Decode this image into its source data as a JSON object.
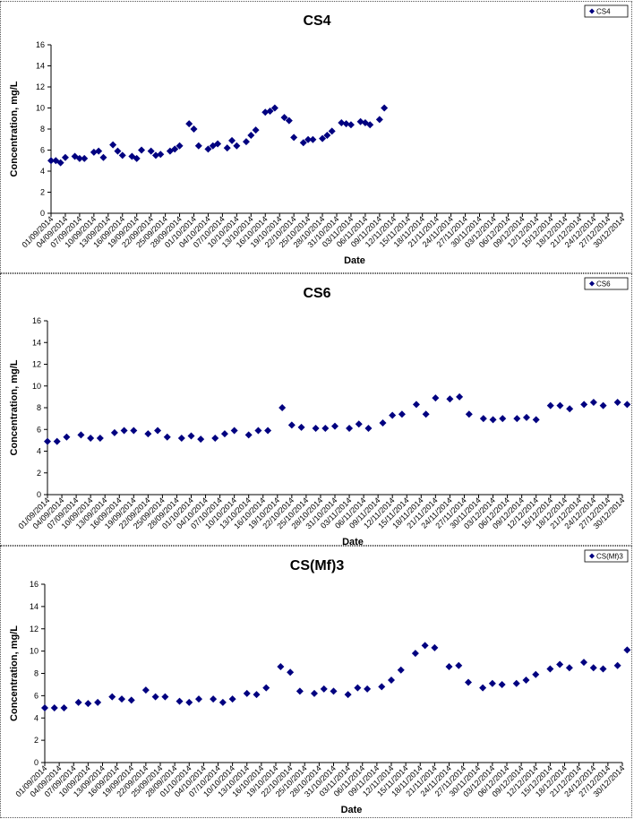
{
  "chart_data": [
    {
      "type": "scatter",
      "title": "CS4",
      "xlabel": "Date",
      "ylabel": "Concentration, mg/L",
      "ylim": [
        0,
        16
      ],
      "yticks": [
        0,
        2,
        4,
        6,
        8,
        10,
        12,
        14,
        16
      ],
      "grid": false,
      "legend_position": "top-right",
      "marker_color": "#000080",
      "x_range": [
        "01/09/2014",
        "30/12/2014"
      ],
      "xtick_labels": [
        "01/09/2014",
        "04/09/2014",
        "07/09/2014",
        "10/09/2014",
        "13/09/2014",
        "16/09/2014",
        "19/09/2014",
        "22/09/2014",
        "25/09/2014",
        "28/09/2014",
        "01/10/2014",
        "04/10/2014",
        "07/10/2014",
        "10/10/2014",
        "13/10/2014",
        "16/10/2014",
        "19/10/2014",
        "22/10/2014",
        "25/10/2014",
        "28/10/2014",
        "31/10/2014",
        "03/11/2014",
        "06/11/2014",
        "09/11/2014",
        "12/11/2014",
        "15/11/2014",
        "18/11/2014",
        "21/11/2014",
        "24/11/2014",
        "27/11/2014",
        "30/11/2014",
        "03/12/2014",
        "06/12/2014",
        "09/12/2014",
        "12/12/2014",
        "15/12/2014",
        "18/12/2014",
        "21/12/2014",
        "24/12/2014",
        "27/12/2014",
        "30/12/2014"
      ],
      "series": [
        {
          "name": "CS4",
          "points": [
            [
              "01/09/2014",
              5.0
            ],
            [
              "02/09/2014",
              5.0
            ],
            [
              "03/09/2014",
              4.8
            ],
            [
              "04/09/2014",
              5.3
            ],
            [
              "06/09/2014",
              5.4
            ],
            [
              "07/09/2014",
              5.2
            ],
            [
              "08/09/2014",
              5.2
            ],
            [
              "10/09/2014",
              5.8
            ],
            [
              "11/09/2014",
              5.9
            ],
            [
              "12/09/2014",
              5.3
            ],
            [
              "14/09/2014",
              6.5
            ],
            [
              "15/09/2014",
              5.9
            ],
            [
              "16/09/2014",
              5.5
            ],
            [
              "18/09/2014",
              5.4
            ],
            [
              "19/09/2014",
              5.2
            ],
            [
              "20/09/2014",
              6.0
            ],
            [
              "22/09/2014",
              5.9
            ],
            [
              "23/09/2014",
              5.5
            ],
            [
              "24/09/2014",
              5.6
            ],
            [
              "26/09/2014",
              5.9
            ],
            [
              "27/09/2014",
              6.1
            ],
            [
              "28/09/2014",
              6.4
            ],
            [
              "30/09/2014",
              8.5
            ],
            [
              "01/10/2014",
              8.0
            ],
            [
              "02/10/2014",
              6.4
            ],
            [
              "04/10/2014",
              6.1
            ],
            [
              "05/10/2014",
              6.4
            ],
            [
              "06/10/2014",
              6.6
            ],
            [
              "08/10/2014",
              6.2
            ],
            [
              "09/10/2014",
              6.9
            ],
            [
              "10/10/2014",
              6.4
            ],
            [
              "12/10/2014",
              6.8
            ],
            [
              "13/10/2014",
              7.4
            ],
            [
              "14/10/2014",
              7.9
            ],
            [
              "16/10/2014",
              9.6
            ],
            [
              "17/10/2014",
              9.7
            ],
            [
              "18/10/2014",
              10.0
            ],
            [
              "20/10/2014",
              9.1
            ],
            [
              "21/10/2014",
              8.8
            ],
            [
              "22/10/2014",
              7.2
            ],
            [
              "24/10/2014",
              6.7
            ],
            [
              "25/10/2014",
              7.0
            ],
            [
              "26/10/2014",
              7.0
            ],
            [
              "28/10/2014",
              7.1
            ],
            [
              "29/10/2014",
              7.4
            ],
            [
              "30/10/2014",
              7.8
            ],
            [
              "01/11/2014",
              8.6
            ],
            [
              "02/11/2014",
              8.5
            ],
            [
              "03/11/2014",
              8.4
            ],
            [
              "05/11/2014",
              8.7
            ],
            [
              "06/11/2014",
              8.6
            ],
            [
              "07/11/2014",
              8.4
            ],
            [
              "09/11/2014",
              8.9
            ],
            [
              "10/11/2014",
              10.0
            ]
          ]
        }
      ]
    },
    {
      "type": "scatter",
      "title": "CS6",
      "xlabel": "Date",
      "ylabel": "Concentration, mg/L",
      "ylim": [
        0,
        16
      ],
      "yticks": [
        0,
        2,
        4,
        6,
        8,
        10,
        12,
        14,
        16
      ],
      "grid": false,
      "legend_position": "top-right",
      "marker_color": "#000080",
      "x_range": [
        "01/09/2014",
        "30/12/2014"
      ],
      "xtick_labels": [
        "01/09/2014",
        "04/09/2014",
        "07/09/2014",
        "10/09/2014",
        "13/09/2014",
        "16/09/2014",
        "19/09/2014",
        "22/09/2014",
        "25/09/2014",
        "28/09/2014",
        "01/10/2014",
        "04/10/2014",
        "07/10/2014",
        "10/10/2014",
        "13/10/2014",
        "16/10/2014",
        "19/10/2014",
        "22/10/2014",
        "25/10/2014",
        "28/10/2014",
        "31/10/2014",
        "03/11/2014",
        "06/11/2014",
        "09/11/2014",
        "12/11/2014",
        "15/11/2014",
        "18/11/2014",
        "21/11/2014",
        "24/11/2014",
        "27/11/2014",
        "30/11/2014",
        "03/12/2014",
        "06/12/2014",
        "09/12/2014",
        "12/12/2014",
        "15/12/2014",
        "18/12/2014",
        "21/12/2014",
        "24/12/2014",
        "27/12/2014",
        "30/12/2014"
      ],
      "series": [
        {
          "name": "CS6",
          "points": [
            [
              "01/09/2014",
              4.9
            ],
            [
              "03/09/2014",
              4.9
            ],
            [
              "05/09/2014",
              5.3
            ],
            [
              "08/09/2014",
              5.5
            ],
            [
              "10/09/2014",
              5.2
            ],
            [
              "12/09/2014",
              5.2
            ],
            [
              "15/09/2014",
              5.7
            ],
            [
              "17/09/2014",
              5.9
            ],
            [
              "19/09/2014",
              5.9
            ],
            [
              "22/09/2014",
              5.6
            ],
            [
              "24/09/2014",
              5.9
            ],
            [
              "26/09/2014",
              5.3
            ],
            [
              "29/09/2014",
              5.2
            ],
            [
              "01/10/2014",
              5.4
            ],
            [
              "03/10/2014",
              5.1
            ],
            [
              "06/10/2014",
              5.2
            ],
            [
              "08/10/2014",
              5.6
            ],
            [
              "10/10/2014",
              5.9
            ],
            [
              "13/10/2014",
              5.5
            ],
            [
              "15/10/2014",
              5.9
            ],
            [
              "17/10/2014",
              5.9
            ],
            [
              "20/10/2014",
              8.0
            ],
            [
              "22/10/2014",
              6.4
            ],
            [
              "24/10/2014",
              6.2
            ],
            [
              "27/10/2014",
              6.1
            ],
            [
              "29/10/2014",
              6.1
            ],
            [
              "31/10/2014",
              6.3
            ],
            [
              "03/11/2014",
              6.1
            ],
            [
              "05/11/2014",
              6.5
            ],
            [
              "07/11/2014",
              6.1
            ],
            [
              "10/11/2014",
              6.6
            ],
            [
              "12/11/2014",
              7.3
            ],
            [
              "14/11/2014",
              7.4
            ],
            [
              "17/11/2014",
              8.3
            ],
            [
              "19/11/2014",
              7.4
            ],
            [
              "21/11/2014",
              8.9
            ],
            [
              "24/11/2014",
              8.8
            ],
            [
              "26/11/2014",
              9.0
            ],
            [
              "28/11/2014",
              7.4
            ],
            [
              "01/12/2014",
              7.0
            ],
            [
              "03/12/2014",
              6.9
            ],
            [
              "05/12/2014",
              7.0
            ],
            [
              "08/12/2014",
              7.0
            ],
            [
              "10/12/2014",
              7.1
            ],
            [
              "12/12/2014",
              6.9
            ],
            [
              "15/12/2014",
              8.2
            ],
            [
              "17/12/2014",
              8.2
            ],
            [
              "19/12/2014",
              7.9
            ],
            [
              "22/12/2014",
              8.3
            ],
            [
              "24/12/2014",
              8.5
            ],
            [
              "26/12/2014",
              8.2
            ],
            [
              "29/12/2014",
              8.5
            ],
            [
              "31/12/2014",
              8.3
            ]
          ]
        }
      ]
    },
    {
      "type": "scatter",
      "title": "CS(Mf)3",
      "xlabel": "Date",
      "ylabel": "Concentration, mg/L",
      "ylim": [
        0,
        16
      ],
      "yticks": [
        0,
        2,
        4,
        6,
        8,
        10,
        12,
        14,
        16
      ],
      "grid": false,
      "legend_position": "top-right",
      "marker_color": "#000080",
      "x_range": [
        "01/09/2014",
        "30/12/2014"
      ],
      "xtick_labels": [
        "01/09/2014",
        "04/09/2014",
        "07/09/2014",
        "10/09/2014",
        "13/09/2014",
        "16/09/2014",
        "19/09/2014",
        "22/09/2014",
        "25/09/2014",
        "28/09/2014",
        "01/10/2014",
        "04/10/2014",
        "07/10/2014",
        "10/10/2014",
        "13/10/2014",
        "16/10/2014",
        "19/10/2014",
        "22/10/2014",
        "25/10/2014",
        "28/10/2014",
        "31/10/2014",
        "03/11/2014",
        "06/11/2014",
        "09/11/2014",
        "12/11/2014",
        "15/11/2014",
        "18/11/2014",
        "21/11/2014",
        "24/11/2014",
        "27/11/2014",
        "30/11/2014",
        "03/12/2014",
        "06/12/2014",
        "09/12/2014",
        "12/12/2014",
        "15/12/2014",
        "18/12/2014",
        "21/12/2014",
        "24/12/2014",
        "27/12/2014",
        "30/12/2014"
      ],
      "series": [
        {
          "name": "CS(Mf)3",
          "points": [
            [
              "01/09/2014",
              4.9
            ],
            [
              "03/09/2014",
              4.9
            ],
            [
              "05/09/2014",
              4.9
            ],
            [
              "08/09/2014",
              5.4
            ],
            [
              "10/09/2014",
              5.3
            ],
            [
              "12/09/2014",
              5.4
            ],
            [
              "15/09/2014",
              5.9
            ],
            [
              "17/09/2014",
              5.7
            ],
            [
              "19/09/2014",
              5.6
            ],
            [
              "22/09/2014",
              6.5
            ],
            [
              "24/09/2014",
              5.9
            ],
            [
              "26/09/2014",
              5.9
            ],
            [
              "29/09/2014",
              5.5
            ],
            [
              "01/10/2014",
              5.4
            ],
            [
              "03/10/2014",
              5.7
            ],
            [
              "06/10/2014",
              5.7
            ],
            [
              "08/10/2014",
              5.4
            ],
            [
              "10/10/2014",
              5.7
            ],
            [
              "13/10/2014",
              6.2
            ],
            [
              "15/10/2014",
              6.1
            ],
            [
              "17/10/2014",
              6.7
            ],
            [
              "20/10/2014",
              8.6
            ],
            [
              "22/10/2014",
              8.1
            ],
            [
              "24/10/2014",
              6.4
            ],
            [
              "27/10/2014",
              6.2
            ],
            [
              "29/10/2014",
              6.6
            ],
            [
              "31/10/2014",
              6.4
            ],
            [
              "03/11/2014",
              6.1
            ],
            [
              "05/11/2014",
              6.7
            ],
            [
              "07/11/2014",
              6.6
            ],
            [
              "10/11/2014",
              6.8
            ],
            [
              "12/11/2014",
              7.4
            ],
            [
              "14/11/2014",
              8.3
            ],
            [
              "17/11/2014",
              9.8
            ],
            [
              "19/11/2014",
              10.5
            ],
            [
              "21/11/2014",
              10.3
            ],
            [
              "24/11/2014",
              8.6
            ],
            [
              "26/11/2014",
              8.7
            ],
            [
              "28/11/2014",
              7.2
            ],
            [
              "01/12/2014",
              6.7
            ],
            [
              "03/12/2014",
              7.1
            ],
            [
              "05/12/2014",
              7.0
            ],
            [
              "08/12/2014",
              7.1
            ],
            [
              "10/12/2014",
              7.4
            ],
            [
              "12/12/2014",
              7.9
            ],
            [
              "15/12/2014",
              8.4
            ],
            [
              "17/12/2014",
              8.8
            ],
            [
              "19/12/2014",
              8.5
            ],
            [
              "22/12/2014",
              9.0
            ],
            [
              "24/12/2014",
              8.5
            ],
            [
              "26/12/2014",
              8.4
            ],
            [
              "29/12/2014",
              8.7
            ],
            [
              "31/12/2014",
              10.1
            ]
          ]
        }
      ]
    }
  ]
}
